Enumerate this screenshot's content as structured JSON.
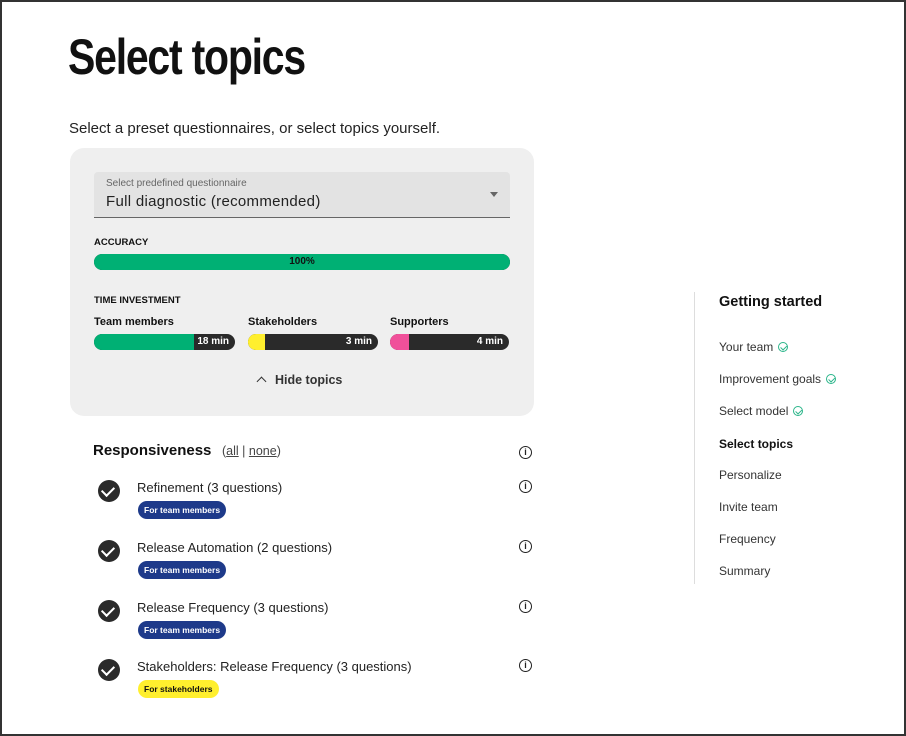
{
  "page": {
    "title": "Select topics",
    "subtitle": "Select a preset questionnaires, or select topics yourself."
  },
  "questionnaire": {
    "label": "Select predefined questionnaire",
    "value": "Full diagnostic (recommended)"
  },
  "accuracy": {
    "label": "ACCURACY",
    "value_text": "100%",
    "fraction": 1.0,
    "color": "#00b074"
  },
  "time_investment": {
    "label": "TIME INVESTMENT",
    "bars": [
      {
        "label": "Team members",
        "value_text": "18 min",
        "fill_fraction": 0.71,
        "color": "#00b074"
      },
      {
        "label": "Stakeholders",
        "value_text": "3 min",
        "fill_fraction": 0.13,
        "color": "#ffef2e"
      },
      {
        "label": "Supporters",
        "value_text": "4 min",
        "fill_fraction": 0.16,
        "color": "#f0509a"
      }
    ]
  },
  "toggle": {
    "label": "Hide topics"
  },
  "section": {
    "title": "Responsiveness",
    "open": "(",
    "all": "all",
    "sep": " | ",
    "none": "none",
    "close": ")",
    "info": "i"
  },
  "topics": [
    {
      "name": "Refinement (3 questions)",
      "tag": "For team members",
      "tag_type": "team",
      "checked": true
    },
    {
      "name": "Release Automation (2 questions)",
      "tag": "For team members",
      "tag_type": "team",
      "checked": true
    },
    {
      "name": "Release Frequency (3 questions)",
      "tag": "For team members",
      "tag_type": "team",
      "checked": true
    },
    {
      "name": "Stakeholders: Release Frequency (3 questions)",
      "tag": "For stakeholders",
      "tag_type": "stake",
      "checked": true
    }
  ],
  "sidebar": {
    "title": "Getting started",
    "steps": [
      {
        "label": "Your team",
        "done": true
      },
      {
        "label": "Improvement goals",
        "done": true
      },
      {
        "label": "Select model",
        "done": true
      },
      {
        "label": "Select topics",
        "current": true
      },
      {
        "label": "Personalize"
      },
      {
        "label": "Invite team"
      },
      {
        "label": "Frequency"
      },
      {
        "label": "Summary"
      }
    ]
  }
}
